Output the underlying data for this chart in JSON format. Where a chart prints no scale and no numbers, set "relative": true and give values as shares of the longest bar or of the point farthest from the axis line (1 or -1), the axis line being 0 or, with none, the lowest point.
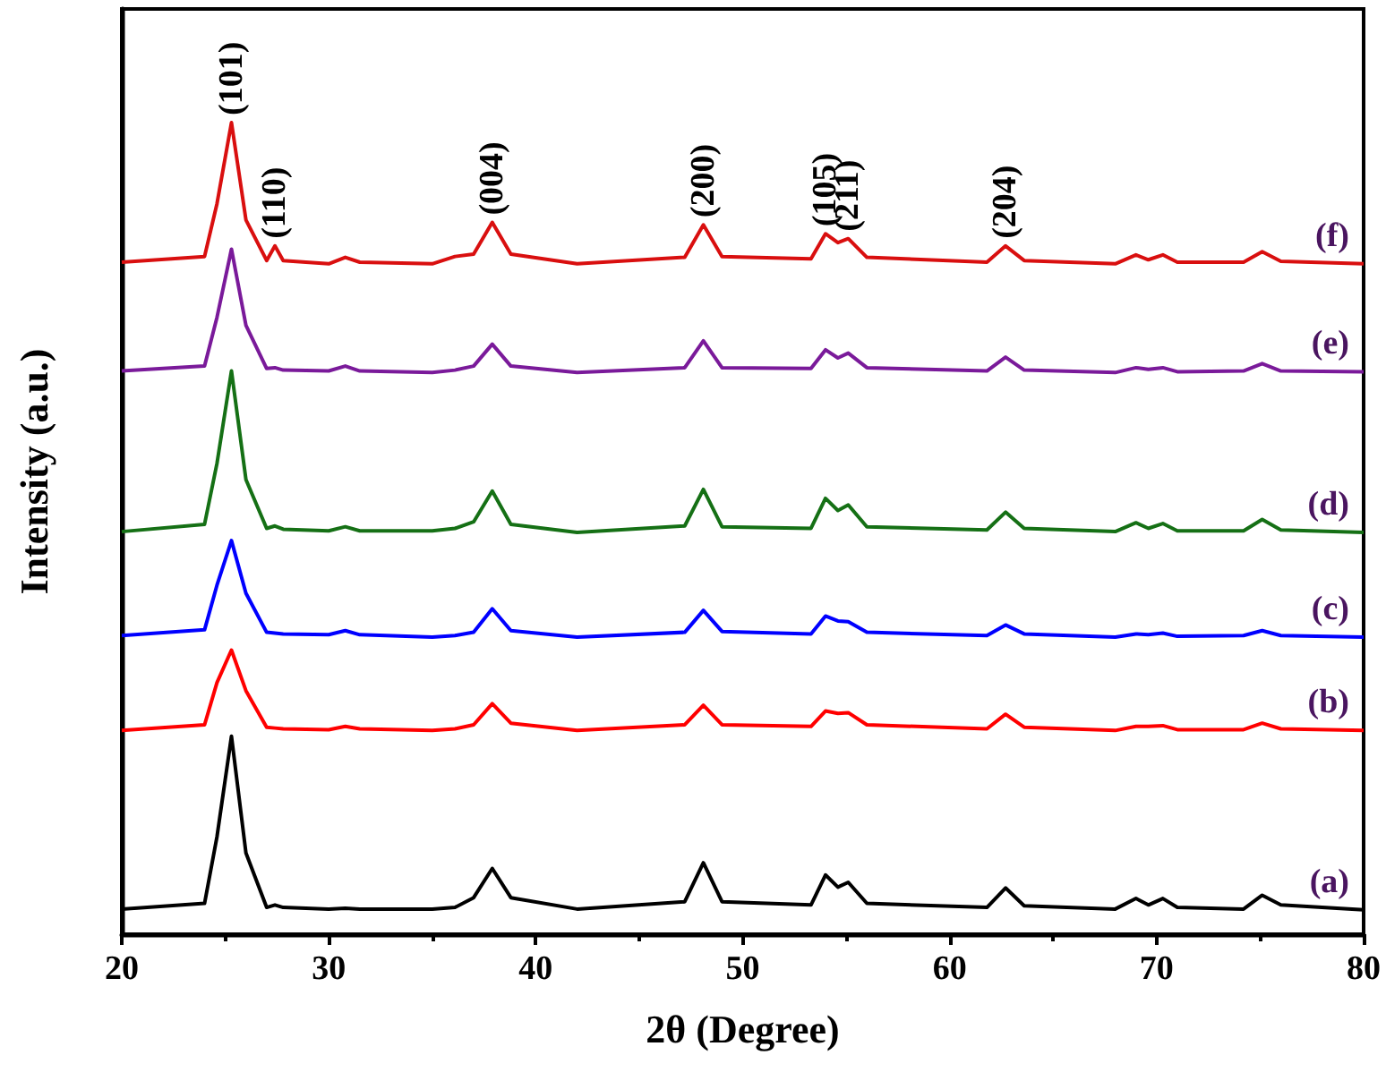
{
  "chart_data": {
    "type": "line",
    "relative": true,
    "xlabel": "2θ (Degree)",
    "ylabel": "Intensity (a.u.)",
    "xlim": [
      20,
      80
    ],
    "xticks": [
      20,
      30,
      40,
      50,
      60,
      70,
      80
    ],
    "grid": false,
    "legend": false,
    "marker": "none",
    "line_style": "solid",
    "x": [
      20,
      24,
      24.6,
      25.3,
      26,
      27,
      27.4,
      27.8,
      30,
      30.8,
      31.5,
      35,
      36.1,
      37,
      37.9,
      38.8,
      42,
      47.2,
      48.1,
      49,
      53.3,
      54,
      54.6,
      55.1,
      56,
      61.8,
      62.7,
      63.6,
      68,
      69,
      69.6,
      70.3,
      71,
      74.2,
      75.1,
      76,
      80
    ],
    "series": [
      {
        "name": "(a)",
        "color": "#000000",
        "values": [
          0.031,
          0.038,
          0.12,
          0.244,
          0.1,
          0.033,
          0.036,
          0.033,
          0.031,
          0.032,
          0.031,
          0.031,
          0.033,
          0.045,
          0.081,
          0.045,
          0.031,
          0.04,
          0.088,
          0.04,
          0.036,
          0.073,
          0.058,
          0.064,
          0.038,
          0.033,
          0.057,
          0.035,
          0.031,
          0.044,
          0.036,
          0.044,
          0.033,
          0.031,
          0.048,
          0.036,
          0.03
        ]
      },
      {
        "name": "(b)",
        "color": "#ff0000",
        "values": [
          0.251,
          0.258,
          0.31,
          0.35,
          0.3,
          0.255,
          0.254,
          0.253,
          0.252,
          0.256,
          0.253,
          0.251,
          0.253,
          0.258,
          0.284,
          0.26,
          0.251,
          0.258,
          0.282,
          0.258,
          0.256,
          0.275,
          0.272,
          0.273,
          0.258,
          0.253,
          0.271,
          0.255,
          0.251,
          0.256,
          0.256,
          0.257,
          0.252,
          0.252,
          0.26,
          0.253,
          0.251
        ]
      },
      {
        "name": "(c)",
        "color": "#0000ff",
        "values": [
          0.368,
          0.375,
          0.43,
          0.485,
          0.42,
          0.372,
          0.371,
          0.37,
          0.369,
          0.374,
          0.369,
          0.366,
          0.368,
          0.372,
          0.401,
          0.374,
          0.366,
          0.372,
          0.399,
          0.373,
          0.37,
          0.392,
          0.386,
          0.385,
          0.372,
          0.368,
          0.381,
          0.37,
          0.366,
          0.37,
          0.369,
          0.371,
          0.367,
          0.368,
          0.374,
          0.368,
          0.366
        ]
      },
      {
        "name": "(d)",
        "color": "#157015",
        "values": [
          0.496,
          0.505,
          0.58,
          0.694,
          0.56,
          0.5,
          0.503,
          0.499,
          0.497,
          0.502,
          0.497,
          0.497,
          0.5,
          0.508,
          0.546,
          0.505,
          0.495,
          0.503,
          0.548,
          0.502,
          0.5,
          0.537,
          0.522,
          0.529,
          0.502,
          0.498,
          0.52,
          0.5,
          0.496,
          0.507,
          0.5,
          0.506,
          0.497,
          0.497,
          0.511,
          0.498,
          0.495
        ]
      },
      {
        "name": "(e)",
        "color": "#7a1a9a",
        "values": [
          0.694,
          0.7,
          0.76,
          0.844,
          0.75,
          0.697,
          0.698,
          0.695,
          0.694,
          0.7,
          0.694,
          0.692,
          0.695,
          0.7,
          0.727,
          0.7,
          0.692,
          0.698,
          0.731,
          0.698,
          0.697,
          0.72,
          0.71,
          0.716,
          0.698,
          0.694,
          0.711,
          0.695,
          0.692,
          0.698,
          0.696,
          0.698,
          0.693,
          0.694,
          0.703,
          0.694,
          0.693
        ]
      },
      {
        "name": "(f)",
        "color": "#d90f0f",
        "values": [
          0.828,
          0.835,
          0.9,
          1.0,
          0.88,
          0.83,
          0.848,
          0.83,
          0.826,
          0.834,
          0.828,
          0.826,
          0.835,
          0.838,
          0.877,
          0.838,
          0.826,
          0.834,
          0.874,
          0.835,
          0.832,
          0.863,
          0.852,
          0.857,
          0.834,
          0.828,
          0.848,
          0.83,
          0.826,
          0.837,
          0.831,
          0.837,
          0.828,
          0.828,
          0.841,
          0.829,
          0.826
        ]
      }
    ],
    "annotations": [
      {
        "text": "(101)",
        "x": 25.3,
        "y": 1.0
      },
      {
        "text": "(110)",
        "x": 27.4,
        "y": 0.848
      },
      {
        "text": "(004)",
        "x": 37.9,
        "y": 0.877
      },
      {
        "text": "(200)",
        "x": 48.1,
        "y": 0.874
      },
      {
        "text": "(105)",
        "x": 54.0,
        "y": 0.863
      },
      {
        "text": "(211)",
        "x": 55.1,
        "y": 0.857
      },
      {
        "text": "(204)",
        "x": 62.7,
        "y": 0.848
      }
    ]
  }
}
